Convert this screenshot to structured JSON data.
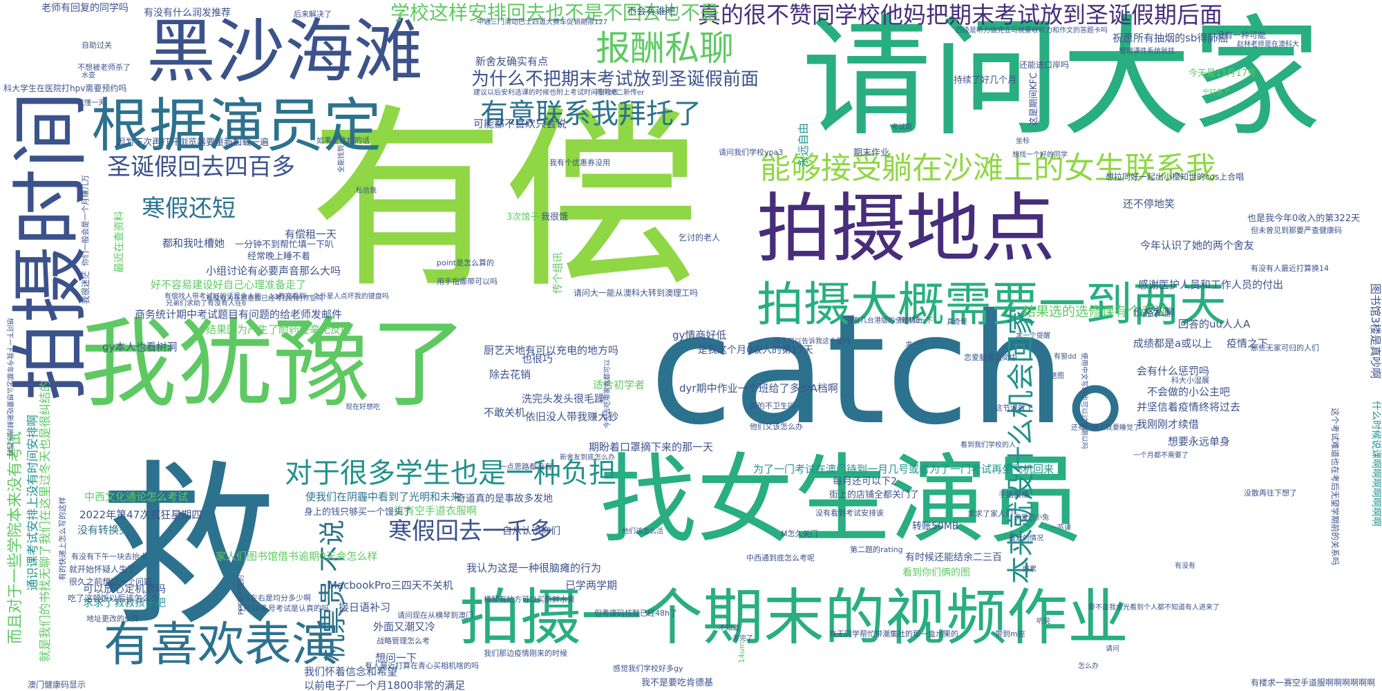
{
  "palette": {
    "lime": "#8fd744",
    "green": "#5ec962",
    "teal": "#21918c",
    "sea": "#28ae80",
    "blue": "#2c728e",
    "indigo": "#3b528b",
    "purple": "#472d7b",
    "dark": "#440154",
    "yellow": "#c8d93c",
    "pale": "#b5de2b"
  },
  "words": [
    {
      "text": "有偿",
      "c": "lime"
    },
    {
      "text": "catch。",
      "c": "blue"
    },
    {
      "text": "请问大家",
      "c": "sea"
    },
    {
      "text": "救",
      "c": "blue"
    },
    {
      "text": "找女生演员",
      "c": "sea"
    },
    {
      "text": "我犹豫了",
      "c": "green"
    },
    {
      "text": "拍摄时间",
      "c": "indigo"
    },
    {
      "text": "黑沙海滩",
      "c": "indigo"
    },
    {
      "text": "拍摄地点",
      "c": "purple"
    },
    {
      "text": "根据演员定",
      "c": "blue"
    },
    {
      "text": "拍摄一个期末的视频作业",
      "c": "sea"
    },
    {
      "text": "拍摄大概需要一到两天",
      "c": "sea"
    },
    {
      "text": "有喜欢表演",
      "c": "blue"
    },
    {
      "text": "能够接受躺在沙滩上的女生联系我",
      "c": "lime"
    },
    {
      "text": "真的很不赞同学校他妈把期末考试放到圣诞假期后面",
      "c": "purple"
    },
    {
      "text": "报酬私聊",
      "c": "green"
    },
    {
      "text": "有意联系我拜托了",
      "c": "blue"
    },
    {
      "text": "对于很多学生也是一种负担",
      "c": "teal"
    },
    {
      "text": "为什么不把期末考试放到圣诞假前面",
      "c": "indigo"
    },
    {
      "text": "学校这样安排回去也不是不回去也不是",
      "c": "green"
    },
    {
      "text": "圣诞假回去四百多",
      "c": "indigo"
    },
    {
      "text": "寒假还短",
      "c": "blue"
    },
    {
      "text": "寒假回去一千多",
      "c": "indigo"
    },
    {
      "text": "机票贵",
      "c": "blue"
    },
    {
      "text": "不说",
      "c": "blue"
    },
    {
      "text": "本来就没什么机会回家",
      "c": "teal"
    },
    {
      "text": "结果选的选修课有个考试",
      "c": "green"
    },
    {
      "text": "而且对于一些学院本来没有考试",
      "c": "green"
    },
    {
      "text": "通识课考试安排上没有时间安排啊",
      "c": "teal"
    },
    {
      "text": "就是我们的书找无聊了我们在这里过冬天也是很纠结的",
      "c": "green"
    },
    {
      "text": "图书馆3楼是真吵啊",
      "c": "indigo"
    },
    {
      "text": "为了一门考试在澳门待到一月几号或者为了一门考试再坐飞机回来",
      "c": "teal"
    },
    {
      "text": "MacbookPro三四天不关机",
      "c": "indigo"
    },
    {
      "text": "家人们图书馆借书逾期0天会怎么样",
      "c": "green"
    },
    {
      "text": "我认为这是一种很脑瘫的行为",
      "c": "indigo"
    },
    {
      "text": "使我们在阴霾中看到了光明和未来",
      "c": "blue"
    },
    {
      "text": "2022年第47次疯狂星期四",
      "c": "indigo"
    },
    {
      "text": "中西文化通论怎么考试",
      "c": "green"
    },
    {
      "text": "没有转换头",
      "c": "blue"
    },
    {
      "text": "可以放心定机票吗",
      "c": "indigo"
    },
    {
      "text": "求求了救救孩子吧",
      "c": "teal"
    },
    {
      "text": "接日语补习",
      "c": "indigo"
    },
    {
      "text": "外面又潮又冷",
      "c": "indigo"
    },
    {
      "text": "想问一下",
      "c": "indigo"
    },
    {
      "text": "我们怀着信念和希望",
      "c": "indigo"
    },
    {
      "text": "以前电子厂一个月1800非常的满足",
      "c": "indigo"
    },
    {
      "text": "澳门健康码显示",
      "c": "indigo"
    },
    {
      "text": "已学两学期",
      "c": "indigo"
    },
    {
      "text": "谁有空手道衣服啊",
      "c": "green"
    },
    {
      "text": "身上的钱只够买一个馒头了",
      "c": "indigo"
    },
    {
      "text": "商务统计期中考试题目有问题的给老师发邮件",
      "c": "indigo"
    },
    {
      "text": "结果因为产生了耐药性毫无反应",
      "c": "green"
    },
    {
      "text": "好不容易建设好自己心理准备走了",
      "c": "green"
    },
    {
      "text": "小组讨论有必要声音那么大吗",
      "c": "indigo"
    },
    {
      "text": "gy本人也看树洞",
      "c": "indigo"
    },
    {
      "text": "都和我吐槽她",
      "c": "indigo"
    },
    {
      "text": "有偿租一天",
      "c": "indigo"
    },
    {
      "text": "因为下次再打开浏览器要重新加载一遍",
      "c": "indigo"
    },
    {
      "text": "可能都不喜欢只会说",
      "c": "indigo"
    },
    {
      "text": "一分钟不到帮忙填一下叭",
      "c": "indigo"
    },
    {
      "text": "经常晚上睡不着",
      "c": "indigo"
    },
    {
      "text": "厨艺天地有可以充电的地方吗",
      "c": "indigo"
    },
    {
      "text": "gy情商好低",
      "c": "indigo"
    },
    {
      "text": "dyr期中作业一个班给了多少A档啊",
      "c": "indigo"
    },
    {
      "text": "洗完头发头很毛躁",
      "c": "indigo"
    },
    {
      "text": "依旧没人带我赚大钞",
      "c": "indigo"
    },
    {
      "text": "期盼着口罩摘下来的那一天",
      "c": "indigo"
    },
    {
      "text": "也很巧",
      "c": "indigo"
    },
    {
      "text": "除去花销",
      "c": "indigo"
    },
    {
      "text": "不敢关机",
      "c": "indigo"
    },
    {
      "text": "适合初学者",
      "c": "green"
    },
    {
      "text": "回答的uu人人A",
      "c": "indigo"
    },
    {
      "text": "成绩都是a或以上",
      "c": "indigo"
    },
    {
      "text": "疫情之下",
      "c": "indigo"
    },
    {
      "text": "价格私聊",
      "c": "indigo"
    },
    {
      "text": "会有什么惩罚吗",
      "c": "indigo"
    },
    {
      "text": "不会做的小公主吧",
      "c": "indigo"
    },
    {
      "text": "并坚信着疫情终将过去",
      "c": "indigo"
    },
    {
      "text": "我刚刚才续借",
      "c": "indigo"
    },
    {
      "text": "想要永远单身",
      "c": "indigo"
    },
    {
      "text": "每月还可以下2",
      "c": "indigo"
    },
    {
      "text": "街上的店铺全都关门了",
      "c": "indigo"
    },
    {
      "text": "奇道真的是事故多发地",
      "c": "indigo"
    },
    {
      "text": "自从认识你们",
      "c": "indigo"
    },
    {
      "text": "转账50MB",
      "c": "indigo"
    },
    {
      "text": "有时候还能结余二三百",
      "c": "indigo"
    },
    {
      "text": "看到你们俩的图",
      "c": "green"
    },
    {
      "text": "感谢医护人员和工作人员的付出",
      "c": "indigo"
    },
    {
      "text": "今年认识了她的两个舍友",
      "c": "indigo"
    },
    {
      "text": "还不停地笑",
      "c": "indigo"
    },
    {
      "text": "也是我今年0收入的第322天",
      "c": "indigo"
    },
    {
      "text": "是我这个月0收入的第17天",
      "c": "indigo"
    },
    {
      "text": "祝愿所有抽烟的sb得肺癌",
      "c": "indigo"
    },
    {
      "text": "今天是11月17号",
      "c": "green"
    },
    {
      "text": "新舍友确实有点",
      "c": "indigo"
    },
    {
      "text": "不会有谁吧",
      "c": "indigo"
    },
    {
      "text": "请问大一能从澳科大转到澳理工吗",
      "c": "indigo"
    },
    {
      "text": "有没有什么润发推荐",
      "c": "indigo"
    },
    {
      "text": "老师有回复的同学吗",
      "c": "indigo"
    },
    {
      "text": "我很饿",
      "c": "indigo"
    },
    {
      "text": "3次馆子",
      "c": "green"
    },
    {
      "text": "传个组讯",
      "c": "green"
    },
    {
      "text": "永远自由",
      "c": "teal"
    },
    {
      "text": "期末作业",
      "c": "indigo"
    },
    {
      "text": "持续了好几个月",
      "c": "indigo"
    },
    {
      "text": "还能进口岸吗",
      "c": "indigo"
    },
    {
      "text": "这是期间KFC",
      "c": "indigo"
    },
    {
      "text": "最近在查资料",
      "c": "green"
    },
    {
      "text": "我很迷茫",
      "c": "indigo"
    },
    {
      "text": "你们一般会是一个月赚几万",
      "c": "indigo"
    },
    {
      "text": "科大学生在医院打hpv需要预约吗",
      "c": "indigo"
    },
    {
      "text": "不想被老师杀了",
      "c": "indigo"
    },
    {
      "text": "自助过关",
      "c": "indigo"
    },
    {
      "text": "很久之前想过一个问题",
      "c": "indigo"
    },
    {
      "text": "就开始怀疑人生了",
      "c": "indigo"
    },
    {
      "text": "吃了这顿饭以后该怎么办",
      "c": "indigo"
    },
    {
      "text": "有没有下午一块去抬卡",
      "c": "indigo"
    },
    {
      "text": "有的快递上怎么写的这样",
      "c": "indigo"
    },
    {
      "text": "乞讨的老人",
      "c": "indigo"
    },
    {
      "text": "没有一种可能",
      "c": "indigo"
    },
    {
      "text": "想拉同好一起出小樱知世的cos上合唱",
      "c": "indigo"
    },
    {
      "text": "但未曾见到那要严查健康码",
      "c": "indigo"
    },
    {
      "text": "有没有人最近打算换14",
      "c": "indigo"
    },
    {
      "text": "那些无家可归的人们",
      "c": "indigo"
    },
    {
      "text": "科大小湿展",
      "c": "indigo"
    },
    {
      "text": "什么时候说课啊啊啊啊啊啊啊",
      "c": "teal"
    },
    {
      "text": "这个考试难道也在考后无望学期前的关系吗",
      "c": "indigo"
    },
    {
      "text": "有楼求一赛空手道服啊啊啊啊啊啊",
      "c": "indigo"
    },
    {
      "text": "没散再往下想了",
      "c": "indigo"
    },
    {
      "text": "手指摄播",
      "c": "indigo"
    },
    {
      "text": "我不是要吃肯德基",
      "c": "indigo"
    },
    {
      "text": "带到m座",
      "c": "indigo"
    },
    {
      "text": "有无同学帮忙带潮集社的那一盒水果的",
      "c": "indigo"
    },
    {
      "text": "第二题的rating",
      "c": "indigo"
    },
    {
      "text": "中西通到底怎么考呢",
      "c": "indigo"
    },
    {
      "text": "M怎久关门",
      "c": "indigo"
    },
    {
      "text": "求求了家人们",
      "c": "indigo"
    },
    {
      "text": "没有看到考试安排诶",
      "c": "indigo"
    },
    {
      "text": "一点思路都没有",
      "c": "indigo"
    },
    {
      "text": "他们又该怎么办",
      "c": "indigo"
    },
    {
      "text": "真的不卫生吗",
      "c": "indigo"
    },
    {
      "text": "这节课就了",
      "c": "indigo"
    },
    {
      "text": "14um",
      "c": "green"
    },
    {
      "text": "我们那边疫情刚来的时候",
      "c": "indigo"
    },
    {
      "text": "战略管理怎么考",
      "c": "indigo"
    },
    {
      "text": "请问现在从横琴到澳门",
      "c": "indigo"
    },
    {
      "text": "有人最近打算在青心买相机啥的吗",
      "c": "indigo"
    },
    {
      "text": "感觉我们学校好多gy",
      "c": "indigo"
    },
    {
      "text": "但粤康码核酸已经48h了",
      "c": "indigo"
    },
    {
      "text": "横琴有地方可以买新鲜水果",
      "c": "indigo"
    },
    {
      "text": "1月10多号考试是认真的吗",
      "c": "indigo"
    },
    {
      "text": "5左右是均分多少啊",
      "c": "indigo"
    },
    {
      "text": "PPT看不懂的",
      "c": "indigo"
    },
    {
      "text": "地址更改的伙伴",
      "c": "indigo"
    },
    {
      "text": "用手指娜带可以吗",
      "c": "indigo"
    },
    {
      "text": "point是怎么算的",
      "c": "indigo"
    },
    {
      "text": "请问我们学校ypa3",
      "c": "indigo"
    },
    {
      "text": "我有个优惠券没用",
      "c": "indigo"
    },
    {
      "text": "中通三门滑动巴士四道大赛车促销期限127",
      "c": "indigo"
    },
    {
      "text": "建议以后安利选课的时候也附上考试时间安排表",
      "c": "indigo"
    },
    {
      "text": "问问大二新传er",
      "c": "indigo"
    },
    {
      "text": "后来解决了",
      "c": "indigo"
    },
    {
      "text": "四级是听力做完立马就要收听力和作文的答题卡吗",
      "c": "indigo"
    },
    {
      "text": "管理课件系统就挂",
      "c": "indigo"
    },
    {
      "text": "赵林老师是在澳科大",
      "c": "indigo"
    },
    {
      "text": "宁打多了",
      "c": "green"
    },
    {
      "text": "就懂一天",
      "c": "indigo"
    },
    {
      "text": "如果是这样的话",
      "c": "indigo"
    },
    {
      "text": "全能找到",
      "c": "indigo"
    },
    {
      "text": "私信我",
      "c": "indigo"
    },
    {
      "text": "有偿找人带考试好的话是会人的",
      "c": "indigo"
    },
    {
      "text": "现在好想吃",
      "c": "indigo"
    },
    {
      "text": "他们该怎么活",
      "c": "indigo"
    },
    {
      "text": "我有几台港版的全新机出",
      "c": "indigo"
    },
    {
      "text": "恋爱脑滚出简中",
      "c": "indigo"
    },
    {
      "text": "有窗dd",
      "c": "indigo"
    },
    {
      "text": "求一个",
      "c": "indigo"
    },
    {
      "text": "今天去吃哪家我都可以",
      "c": "indigo"
    },
    {
      "text": "新舍友到底怎么办",
      "c": "indigo"
    },
    {
      "text": "真奇怪",
      "c": "indigo"
    },
    {
      "text": "亲爱的小兔",
      "c": "indigo"
    },
    {
      "text": "要不是我余光看到个人都不知道有人进来了",
      "c": "indigo"
    },
    {
      "text": "兄弟们求助了有没有人在6",
      "c": "indigo"
    },
    {
      "text": "13教室看到一个外星人点坏我的键盘吗",
      "c": "indigo"
    },
    {
      "text": "有没有人在这里面已经考过的的作业吗",
      "c": "indigo"
    },
    {
      "text": "求一个提醒",
      "c": "indigo"
    },
    {
      "text": "水壶",
      "c": "indigo"
    },
    {
      "text": "一节课",
      "c": "indigo"
    },
    {
      "text": "最近的情况",
      "c": "indigo"
    },
    {
      "text": "使用中文写的也可以过学期以吗",
      "c": "indigo"
    },
    {
      "text": "一个月都不需要了",
      "c": "indigo"
    },
    {
      "text": "看到我们学校的人",
      "c": "indigo"
    },
    {
      "text": "想问下一下我今年都怎么想要吃新鲜的东西的",
      "c": "indigo"
    },
    {
      "text": "还有一晚上就要睡觉了",
      "c": "indigo"
    },
    {
      "text": "有人可以告诉我这个要吗",
      "c": "indigo"
    },
    {
      "text": "送图",
      "c": "indigo"
    },
    {
      "text": "坐标",
      "c": "indigo"
    },
    {
      "text": "我想问一下",
      "c": "indigo"
    },
    {
      "text": "想找一个好的同学",
      "c": "indigo"
    },
    {
      "text": "考试周",
      "c": "indigo"
    },
    {
      "text": "考完了",
      "c": "indigo"
    },
    {
      "text": "不知道",
      "c": "indigo"
    },
    {
      "text": "有没有",
      "c": "indigo"
    },
    {
      "text": "好累",
      "c": "indigo"
    },
    {
      "text": "听说",
      "c": "indigo"
    },
    {
      "text": "怎么办",
      "c": "indigo"
    },
    {
      "text": "请问",
      "c": "indigo"
    }
  ]
}
